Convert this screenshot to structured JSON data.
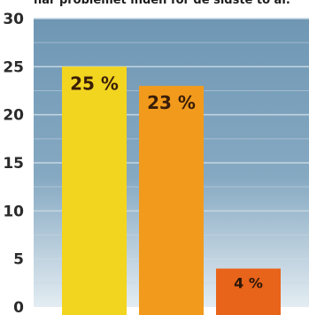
{
  "chart_data": {
    "type": "bar",
    "title": "har problemet inden for de sidste to år.",
    "categories": [
      "",
      "",
      ""
    ],
    "values": [
      25,
      23,
      4
    ],
    "data_labels": [
      "25 %",
      "23 %",
      "4 %"
    ],
    "colors": [
      "#f2d51f",
      "#f29a1c",
      "#e8641a"
    ],
    "ylim": [
      0,
      30
    ],
    "yticks": [
      "0",
      "5",
      "10",
      "15",
      "20",
      "25",
      "30"
    ],
    "grid": true,
    "xlabel": "",
    "ylabel": ""
  },
  "colors": {
    "plot_background": "#7ca2bd",
    "grid_line": "#c6d7e3",
    "gradient_bottom": "#dfe9f0"
  }
}
